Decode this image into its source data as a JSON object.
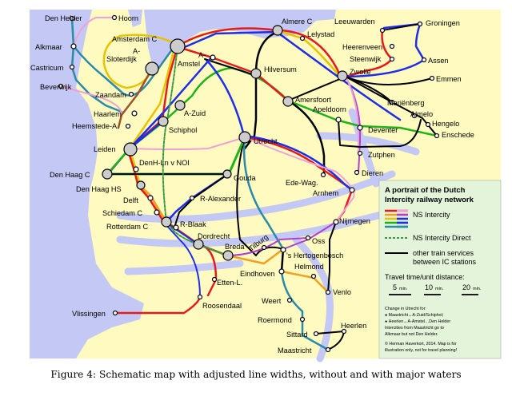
{
  "stations": {
    "den_helder": "Den Helder",
    "hoorn": "Hoorn",
    "alkmaar": "Alkmaar",
    "castricum": "Castricum",
    "beverwijk": "Beverwijk",
    "zaandam": "Zaandam",
    "amsterdam_c": "Amsterdam C",
    "a_sloterdijk_1": "A-",
    "a_sloterdijk_2": "Sloterdijk",
    "a_amstel_1": "A-",
    "a_amstel_2": "Amstel",
    "almere_c": "Almere C",
    "lelystad": "Lelystad",
    "leeuwarden": "Leeuwarden",
    "groningen": "Groningen",
    "heerenveen": "Heerenveen",
    "steenwijk": "Steenwijk",
    "assen": "Assen",
    "zwolle": "Zwolle",
    "emmen": "Emmen",
    "hilversum": "Hilversum",
    "haarlem": "Haarlem",
    "heemstede": "Heemstede-A.",
    "a_zuid": "A-Zuid",
    "schiphol": "Schiphol",
    "amersfoort": "Amersfoort",
    "apeldoorn": "Apeldoorn",
    "marienberg": "Mariënberg",
    "almelo": "Almelo",
    "hengelo": "Hengelo",
    "enschede": "Enschede",
    "deventer": "Deventer",
    "leiden": "Leiden",
    "utrecht": "Utrecht",
    "zutphen": "Zutphen",
    "denh_lnvnoi": "DenH-Ln v NOI",
    "den_haag_c": "Den Haag C",
    "gouda": "Gouda",
    "dieren": "Dieren",
    "ede_wag": "Ede-Wag.",
    "den_haag_hs": "Den Haag HS",
    "arnhem": "Arnhem",
    "delft": "Delft",
    "r_alexander": "R-Alexander",
    "schiedam_c": "Schiedam C",
    "nijmegen": "Nijmegen",
    "rotterdam_c": "Rotterdam C",
    "r_blaak": "R-Blaak",
    "dordrecht": "Dordrecht",
    "tilburg": "Tilburg",
    "oss": "Oss",
    "breda": "Breda",
    "s_hertogenbosch": "'s Hertogenbosch",
    "helmond": "Helmond",
    "eindhoven": "Eindhoven",
    "etten_l": "Etten-L.",
    "venlo": "Venlo",
    "roosendaal": "Roosendaal",
    "weert": "Weert",
    "vlissingen": "Vlissingen",
    "roermond": "Roermond",
    "heerlen": "Heerlen",
    "sittard": "Sittard",
    "maastricht": "Maastricht"
  },
  "legend": {
    "title_line1": "A portrait of the Dutch",
    "title_line2": "Intercity railway network",
    "ns_intercity": "NS Intercity",
    "ns_intercity_direct": "NS Intercity Direct",
    "other_line1": "other train services",
    "other_line2": "between IC stations",
    "travel_time": "Travel time/unit distance:",
    "scale_5": "5",
    "scale_10": "10",
    "scale_20": "20",
    "min_label": "min.",
    "note_1": "Change in Utrecht for:",
    "note_2": "● Maastricht↔A-Zuid/Schiphol;",
    "note_3": "● Heerlen↔A-Amstel…Den Helder",
    "note_4": "Intercities from Maastricht go to",
    "note_5": "Alkmaar but not Den Helder.",
    "credit_1": "© Herman Haverkort, 2014. Map is for",
    "credit_2": "illustration only, not for travel planning!"
  },
  "colors": {
    "land": "#fffbc0",
    "water": "#c4c8f4",
    "legend_bg": "#e4f4da",
    "red": "#e41a1c",
    "blue": "#1f2ee6",
    "green": "#21b21a",
    "yellow": "#e6c200",
    "orange": "#f0a020",
    "pink": "#f0a0d8",
    "brown": "#a0522d",
    "purple": "#b040d0",
    "teal": "#2a8aaa",
    "black": "#000000",
    "ic_direct": "#3a9a48"
  },
  "caption": "Figure 4: Schematic map with adjusted line widths, without and with major waters"
}
